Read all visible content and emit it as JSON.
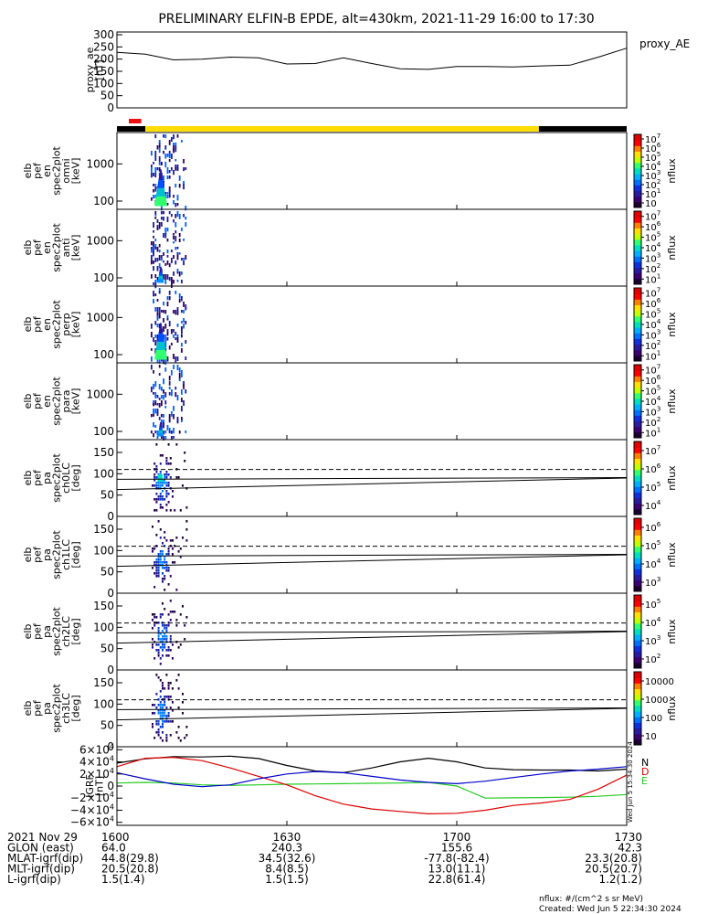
{
  "title": "PRELIMINARY ELFIN-B EPDE, alt=430km, 2021-11-29 16:00 to 17:30",
  "footer": {
    "units": "nflux: #/(cm^2 s sr MeV)",
    "created": "Created: Wed Jun  5 22:34:30 2024"
  },
  "side_note": "Wed Jun  5 15:34:30 2024",
  "colors": {
    "red_bar": "#ee1111",
    "yellow_bar": "#ffdd00",
    "black_bar": "#000000",
    "igrf_n": "#000000",
    "igrf_e": "#22cc22",
    "igrf_d": "#dd0000",
    "igrf_total": "#0000cc"
  },
  "colorbar_colors": [
    "#ffffff",
    "#1a0030",
    "#3c0070",
    "#2a1aa0",
    "#1030e0",
    "#0070ff",
    "#00b0ff",
    "#00e0c0",
    "#30ff70",
    "#c0ff00",
    "#ffe000",
    "#ff8000",
    "#ff0000",
    "#e00000"
  ],
  "time_axis": {
    "row_labels": [
      "2021 Nov 29",
      "GLON (east)",
      "MLAT-igrf(dip)",
      "MLT-igrf(dip)",
      "L-igrf(dip)"
    ],
    "columns": [
      {
        "time": "1600",
        "values": [
          "64.0",
          "44.8(29.8)",
          "20.5(20.8)",
          "1.5(1.4)"
        ]
      },
      {
        "time": "1630",
        "values": [
          "240.3",
          "34.5(32.6)",
          "8.4(8.5)",
          "1.5(1.5)"
        ]
      },
      {
        "time": "1700",
        "values": [
          "155.6",
          "-77.8(-82.4)",
          "13.0(11.1)",
          "22.8(61.4)"
        ]
      },
      {
        "time": "1730",
        "values": [
          "42.3",
          "23.3(20.8)",
          "20.5(20.7)",
          "1.2(1.2)"
        ]
      }
    ]
  },
  "chart_data": [
    {
      "type": "line",
      "id": "proxy_ae",
      "ylabel_lines": [
        "proxy_ae",
        "[nT]"
      ],
      "legend": "proxy_AE",
      "ylim": [
        0,
        300
      ],
      "yticks": [
        "0",
        "50",
        "100",
        "150",
        "200",
        "250",
        "300"
      ],
      "x_minutes": [
        0,
        5,
        10,
        15,
        20,
        25,
        30,
        35,
        40,
        45,
        50,
        55,
        60,
        65,
        70,
        75,
        80,
        85,
        90
      ],
      "values": [
        228,
        220,
        197,
        200,
        208,
        205,
        180,
        182,
        205,
        182,
        160,
        158,
        170,
        170,
        168,
        172,
        175,
        208,
        245
      ]
    },
    {
      "type": "bar",
      "id": "orbit_bar",
      "segments": [
        {
          "color": "black_bar",
          "start_min": 0,
          "end_min": 5.0
        },
        {
          "color": "yellow_bar",
          "start_min": 5.0,
          "end_min": 74.5
        },
        {
          "color": "black_bar",
          "start_min": 74.5,
          "end_min": 90
        }
      ],
      "red_segment": {
        "start_min": 2.1,
        "end_min": 4.3
      }
    },
    {
      "type": "heatmap",
      "id": "en_omni",
      "ylabel_lines": [
        "elb",
        "pef",
        "en",
        "spec2plot",
        "omni",
        "[keV]"
      ],
      "yscale": "log",
      "ylim": [
        60,
        7000
      ],
      "yticks": [
        {
          "v": 100,
          "t": "100"
        },
        {
          "v": 1000,
          "t": "1000"
        }
      ],
      "colorbar": {
        "label": "nflux",
        "scale": "log",
        "range": [
          10,
          10000000
        ],
        "ticks": [
          "10",
          "10^1",
          "10^2",
          "10^3",
          "10^4",
          "10^5",
          "10^6",
          "10^7"
        ]
      }
    },
    {
      "type": "heatmap",
      "id": "en_anti",
      "ylabel_lines": [
        "elb",
        "pef",
        "en",
        "spec2plot",
        "anti",
        "[keV]"
      ],
      "yscale": "log",
      "ylim": [
        60,
        7000
      ],
      "yticks": [
        {
          "v": 100,
          "t": "100"
        },
        {
          "v": 1000,
          "t": "1000"
        }
      ],
      "colorbar": {
        "label": "nflux",
        "scale": "log",
        "range": [
          10,
          10000000
        ],
        "ticks": [
          "10^1",
          "10^2",
          "10^3",
          "10^4",
          "10^5",
          "10^6",
          "10^7"
        ]
      }
    },
    {
      "type": "heatmap",
      "id": "en_perp",
      "ylabel_lines": [
        "elb",
        "pef",
        "en",
        "spec2plot",
        "perp",
        "[keV]"
      ],
      "yscale": "log",
      "ylim": [
        60,
        7000
      ],
      "yticks": [
        {
          "v": 100,
          "t": "100"
        },
        {
          "v": 1000,
          "t": "1000"
        }
      ],
      "colorbar": {
        "label": "nflux",
        "scale": "log",
        "range": [
          10,
          10000000
        ],
        "ticks": [
          "10^1",
          "10^2",
          "10^3",
          "10^4",
          "10^5",
          "10^6",
          "10^7"
        ]
      }
    },
    {
      "type": "heatmap",
      "id": "en_para",
      "ylabel_lines": [
        "elb",
        "pef",
        "en",
        "spec2plot",
        "para",
        "[keV]"
      ],
      "yscale": "log",
      "ylim": [
        60,
        7000
      ],
      "yticks": [
        {
          "v": 100,
          "t": "100"
        },
        {
          "v": 1000,
          "t": "1000"
        }
      ],
      "colorbar": {
        "label": "nflux",
        "scale": "log",
        "range": [
          10,
          10000000
        ],
        "ticks": [
          "10^1",
          "10^2",
          "10^3",
          "10^4",
          "10^5",
          "10^6",
          "10^7"
        ]
      }
    },
    {
      "type": "heatmap",
      "id": "pa_ch0LC",
      "ylabel_lines": [
        "elb",
        "pef",
        "pa",
        "spec2plot",
        "ch0LC",
        "[deg]"
      ],
      "ylim": [
        0,
        180
      ],
      "yticks": [
        {
          "v": 0,
          "t": "0"
        },
        {
          "v": 50,
          "t": "50"
        },
        {
          "v": 100,
          "t": "100"
        },
        {
          "v": 150,
          "t": "150"
        }
      ],
      "loss_cone_lines": {
        "solid_deg": [
          63,
          87
        ],
        "dashed_deg": 110
      },
      "colorbar": {
        "label": "nflux",
        "scale": "log",
        "range": [
          1000,
          10000000
        ],
        "ticks": [
          "10^4",
          "10^5",
          "10^6",
          "10^7"
        ]
      }
    },
    {
      "type": "heatmap",
      "id": "pa_ch1LC",
      "ylabel_lines": [
        "elb",
        "pef",
        "pa",
        "spec2plot",
        "ch1LC",
        "[deg]"
      ],
      "ylim": [
        0,
        180
      ],
      "yticks": [
        {
          "v": 0,
          "t": "0"
        },
        {
          "v": 50,
          "t": "50"
        },
        {
          "v": 100,
          "t": "100"
        },
        {
          "v": 150,
          "t": "150"
        }
      ],
      "loss_cone_lines": {
        "solid_deg": [
          63,
          87
        ],
        "dashed_deg": 110
      },
      "colorbar": {
        "label": "nflux",
        "scale": "log",
        "range": [
          100,
          10000000
        ],
        "ticks": [
          "10^3",
          "10^4",
          "10^5",
          "10^6"
        ]
      }
    },
    {
      "type": "heatmap",
      "id": "pa_ch2LC",
      "ylabel_lines": [
        "elb",
        "pef",
        "pa",
        "spec2plot",
        "ch2LC",
        "[deg]"
      ],
      "ylim": [
        0,
        180
      ],
      "yticks": [
        {
          "v": 0,
          "t": "0"
        },
        {
          "v": 50,
          "t": "50"
        },
        {
          "v": 100,
          "t": "100"
        },
        {
          "v": 150,
          "t": "150"
        }
      ],
      "loss_cone_lines": {
        "solid_deg": [
          63,
          87
        ],
        "dashed_deg": 110
      },
      "colorbar": {
        "label": "nflux",
        "scale": "log",
        "range": [
          50,
          1000000
        ],
        "ticks": [
          "10^2",
          "10^3",
          "10^4",
          "10^5"
        ]
      }
    },
    {
      "type": "heatmap",
      "id": "pa_ch3LC",
      "ylabel_lines": [
        "elb",
        "pef",
        "pa",
        "spec2plot",
        "ch3LC",
        "[deg]"
      ],
      "ylim": [
        0,
        180
      ],
      "yticks": [
        {
          "v": 0,
          "t": "0"
        },
        {
          "v": 50,
          "t": "50"
        },
        {
          "v": 100,
          "t": "100"
        },
        {
          "v": 150,
          "t": "150"
        }
      ],
      "loss_cone_lines": {
        "solid_deg": [
          63,
          87
        ],
        "dashed_deg": 110
      },
      "colorbar": {
        "label": "nflux",
        "scale": "log",
        "range": [
          10,
          10000
        ],
        "ticks": [
          "10",
          "100",
          "1000",
          "10000"
        ]
      }
    },
    {
      "type": "line",
      "id": "igrf",
      "ylabel_lines": [
        "IGRF",
        "[nT]"
      ],
      "ylim": [
        -65000,
        65000
      ],
      "yticks": [
        {
          "v": 60000,
          "m": "6",
          "e": "4"
        },
        {
          "v": 40000,
          "m": "4",
          "e": "4"
        },
        {
          "v": 20000,
          "m": "2",
          "e": "4"
        },
        {
          "v": 0,
          "m": "0",
          "e": ""
        },
        {
          "v": -20000,
          "m": "−2",
          "e": "4"
        },
        {
          "v": -40000,
          "m": "−4",
          "e": "4"
        },
        {
          "v": -60000,
          "m": "−6",
          "e": "4"
        }
      ],
      "legend": [
        "N",
        "E",
        "D"
      ],
      "x_minutes": [
        0,
        5,
        10,
        15,
        20,
        25,
        30,
        35,
        40,
        45,
        50,
        55,
        60,
        65,
        70,
        75,
        80,
        85,
        90
      ],
      "series": [
        {
          "name": "N",
          "color": "igrf_n",
          "values": [
            38000,
            45000,
            48500,
            48000,
            49500,
            45500,
            34000,
            25000,
            22000,
            30000,
            40000,
            46000,
            40000,
            30000,
            27000,
            26500,
            26500,
            25000,
            28000
          ]
        },
        {
          "name": "E",
          "color": "igrf_e",
          "values": [
            5000,
            6000,
            5000,
            2000,
            1000,
            2000,
            3000,
            3500,
            4000,
            4500,
            5000,
            6000,
            0,
            -20000,
            -19500,
            -19000,
            -18500,
            -17000,
            -14000
          ]
        },
        {
          "name": "D",
          "color": "igrf_d",
          "values": [
            32000,
            46000,
            47500,
            42000,
            30000,
            16000,
            2000,
            -16000,
            -30000,
            -38000,
            -42000,
            -46000,
            -45000,
            -40000,
            -32000,
            -28000,
            -22000,
            -5000,
            18000
          ]
        },
        {
          "name": "",
          "color": "igrf_total",
          "values": [
            22000,
            12000,
            3000,
            -1000,
            2000,
            12000,
            20000,
            24000,
            22000,
            16000,
            10000,
            6000,
            4000,
            8000,
            14000,
            20000,
            25000,
            28000,
            32000
          ]
        }
      ]
    }
  ]
}
